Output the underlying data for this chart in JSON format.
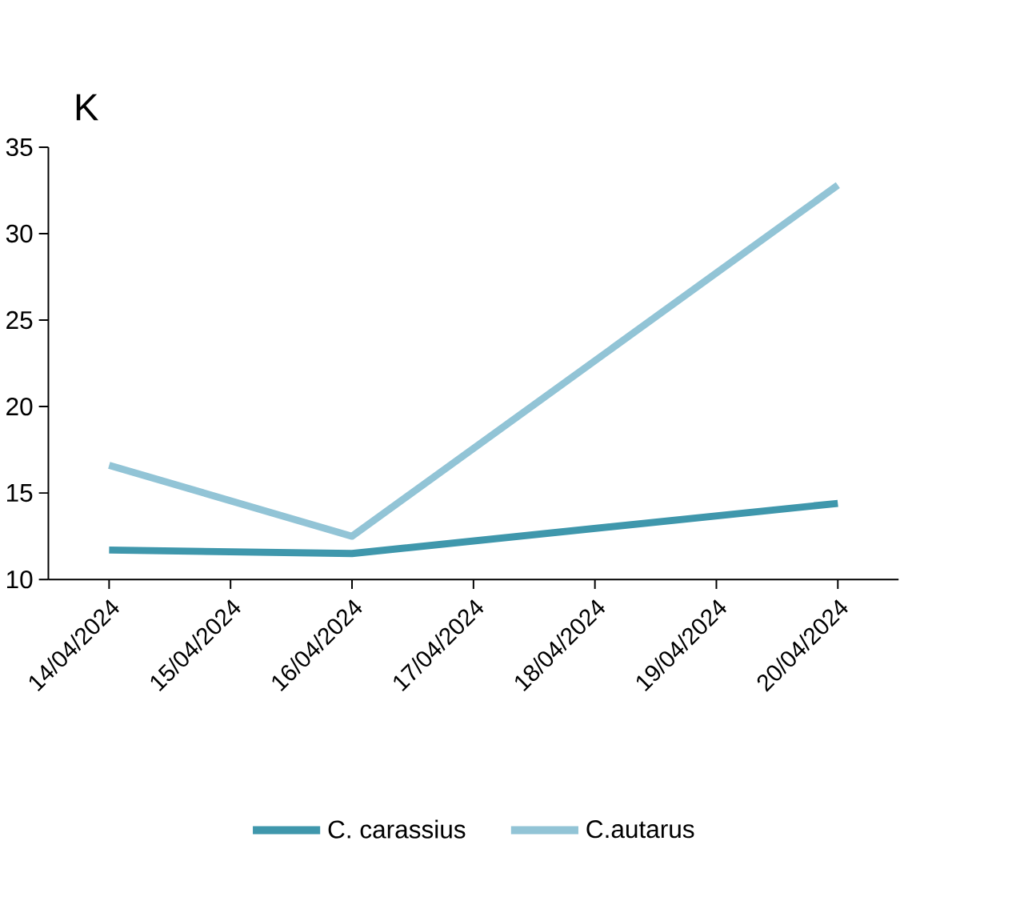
{
  "chart_data": {
    "type": "line",
    "title": "K",
    "categories": [
      "14/04/2024",
      "15/04/2024",
      "16/04/2024",
      "17/04/2024",
      "18/04/2024",
      "19/04/2024",
      "20/04/2024"
    ],
    "series": [
      {
        "name": "C. carassius",
        "color": "#3f97ac",
        "values": [
          11.7,
          null,
          11.5,
          null,
          null,
          null,
          14.4
        ]
      },
      {
        "name": "C.autarus",
        "color": "#92c4d6",
        "values": [
          16.6,
          null,
          12.5,
          null,
          null,
          null,
          32.8
        ]
      }
    ],
    "ylim": [
      10,
      35
    ],
    "yticks": [
      10,
      15,
      20,
      25,
      30,
      35
    ],
    "legend": "bottom",
    "line_style": "solid"
  }
}
